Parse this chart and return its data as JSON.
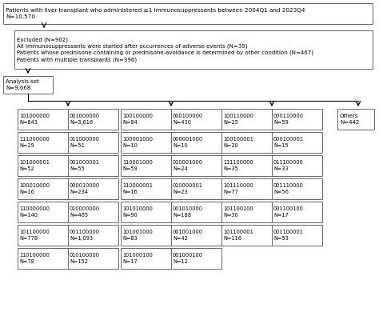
{
  "title_box": {
    "text": "Patients with liver transplant who administered ≥1 immunosuppressants between 2004Q1 and 2023Q4\nN=10,570"
  },
  "excluded_box": {
    "text": "Excluded (N=902)\nAll immunosuppressants were started after occurrences of adverse events (N=39)\nPatients whose prednisone-containing or prednisone-avoidance is determined by other condition (N=467)\nPatients with multiple transplants (N=396)"
  },
  "analysis_box": {
    "text": "Analysis set\nN=9,668"
  },
  "col1_pairs": [
    [
      "101000000\nN=843",
      "001000000\nN=3,616"
    ],
    [
      "111000000\nN=29",
      "011000000\nN=51"
    ],
    [
      "101000001\nN=52",
      "001000001\nN=55"
    ],
    [
      "100010000\nN=16",
      "000010000\nN=234"
    ],
    [
      "110000000\nN=140",
      "010000000\nN=465"
    ],
    [
      "101100000\nN=778",
      "001100000\nN=1,093"
    ],
    [
      "110100000\nN=78",
      "010100000\nN=152"
    ]
  ],
  "col2_pairs": [
    [
      "100100000\nN=84",
      "000100000\nN=430"
    ],
    [
      "100001000\nN=10",
      "000001000\nN=10"
    ],
    [
      "110001000\nN=59",
      "010001000\nN=24"
    ],
    [
      "110000001\nN=16",
      "010000001\nN=23"
    ],
    [
      "101010000\nN=90",
      "001010000\nN=188"
    ],
    [
      "101001000\nN=83",
      "001001000\nN=42"
    ],
    [
      "101000100\nN=17",
      "001000100\nN=12"
    ]
  ],
  "col3_pairs": [
    [
      "100110000\nN=25",
      "000110000\nN=59"
    ],
    [
      "100100001\nN=20",
      "000100001\nN=15"
    ],
    [
      "111100000\nN=35",
      "011100000\nN=33"
    ],
    [
      "101110000\nN=77",
      "001110000\nN=56"
    ],
    [
      "101100100\nN=30",
      "001100100\nN=17"
    ],
    [
      "101100001\nN=116",
      "001100001\nN=53"
    ]
  ],
  "others_box": {
    "text": "Others\nN=442"
  },
  "bg_color": "#ffffff",
  "box_edge_color": "#666666",
  "text_color": "#000000",
  "fontsize": 4.8
}
